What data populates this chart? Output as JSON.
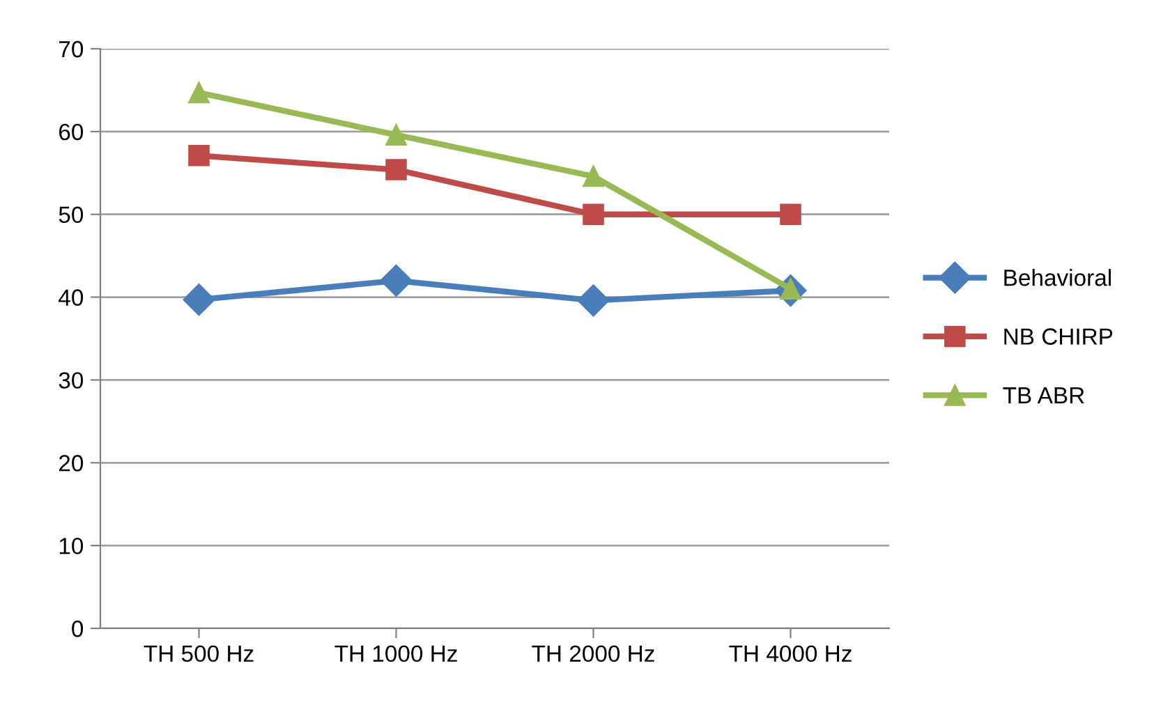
{
  "chart_data": {
    "type": "line",
    "categories": [
      "TH 500 Hz",
      "TH 1000 Hz",
      "TH 2000 Hz",
      "TH 4000 Hz"
    ],
    "series": [
      {
        "name": "Behavioral",
        "color": "#4a7ebb",
        "marker": "diamond",
        "values": [
          39.7,
          42,
          39.6,
          40.8
        ]
      },
      {
        "name": "NB CHIRP",
        "color": "#be4b48",
        "marker": "square",
        "values": [
          57.1,
          55.4,
          50,
          50
        ]
      },
      {
        "name": "TB ABR",
        "color": "#98b954",
        "marker": "triangle",
        "values": [
          64.7,
          59.6,
          54.6,
          41
        ]
      }
    ],
    "ylim": [
      0,
      70
    ],
    "yticks": [
      0,
      10,
      20,
      30,
      40,
      50,
      60,
      70
    ],
    "grid": "y",
    "legend": "right",
    "line_style": "solid"
  }
}
